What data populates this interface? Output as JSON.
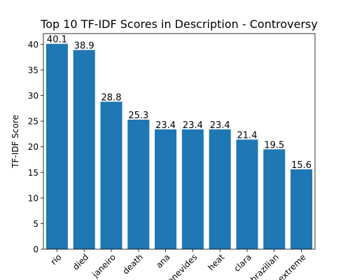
{
  "chart_data": {
    "type": "bar",
    "title": "Top 10 TF-IDF Scores in Description - Controversy",
    "xlabel": "",
    "ylabel": "TF-IDF Score",
    "categories": [
      "rio",
      "died",
      "janeiro",
      "death",
      "ana",
      "benevides",
      "heat",
      "clara",
      "brazilian",
      "extreme"
    ],
    "values": [
      40.1,
      38.9,
      28.8,
      25.3,
      23.4,
      23.4,
      23.4,
      21.4,
      19.5,
      15.6
    ],
    "value_labels": [
      "40.1",
      "38.9",
      "28.8",
      "25.3",
      "23.4",
      "23.4",
      "23.4",
      "21.4",
      "19.5",
      "15.6"
    ],
    "ylim": [
      0,
      42.1
    ],
    "yticks": [
      0,
      5,
      10,
      15,
      20,
      25,
      30,
      35,
      40
    ],
    "grid": false,
    "bar_color": "#1f77b4"
  }
}
